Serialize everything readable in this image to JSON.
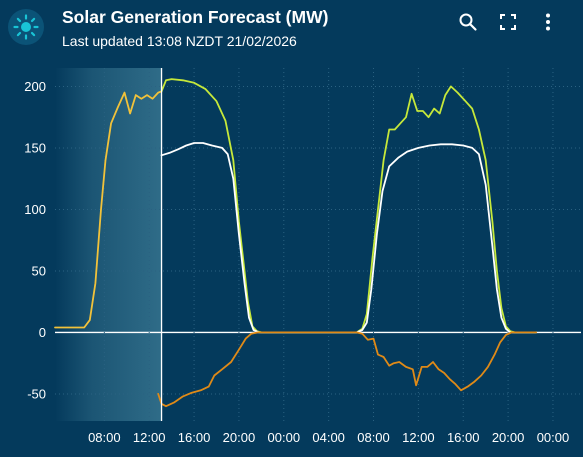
{
  "header": {
    "title": "Solar Generation Forecast (MW)",
    "subtitle": "Last updated 13:08 NZDT 21/02/2026",
    "icons": [
      "sun-icon",
      "zoom-icon",
      "fullscreen-icon",
      "more-vert-icon"
    ]
  },
  "colors": {
    "background": "#043a5c",
    "grid": "#2b6282",
    "zero_line": "#ffffff",
    "past_shade": "#2f6c88",
    "now_line": "#ffffff",
    "badge_icon": "#19c4d6",
    "series_yellow": "#f2c23a",
    "series_lime": "#c6e83a",
    "series_white": "#ffffff",
    "series_orange": "#e08a17"
  },
  "chart_data": {
    "type": "line",
    "x_unit": "hours from 04:00 on day 1",
    "x_tick_labels": [
      "08:00",
      "12:00",
      "16:00",
      "20:00",
      "00:00",
      "04:00",
      "08:00",
      "12:00",
      "16:00",
      "20:00",
      "00:00"
    ],
    "x_tick_positions": [
      4,
      8,
      12,
      16,
      20,
      24,
      28,
      32,
      36,
      40,
      44
    ],
    "xlim": [
      -0.4,
      46.5
    ],
    "ylim": [
      -72,
      215
    ],
    "y_ticks": [
      -50,
      0,
      50,
      100,
      150,
      200
    ],
    "grid": true,
    "now_marker": 9.1,
    "past_range": [
      -0.4,
      9.1
    ],
    "series": [
      {
        "color_key": "series_yellow",
        "points": [
          [
            -0.4,
            4
          ],
          [
            1.2,
            4
          ],
          [
            2.2,
            4
          ],
          [
            2.7,
            10
          ],
          [
            3.2,
            40
          ],
          [
            3.7,
            100
          ],
          [
            4.1,
            140
          ],
          [
            4.6,
            170
          ],
          [
            5.2,
            183
          ],
          [
            5.8,
            195
          ],
          [
            6.3,
            178
          ],
          [
            6.8,
            193
          ],
          [
            7.3,
            190
          ],
          [
            7.8,
            193
          ],
          [
            8.3,
            190
          ],
          [
            8.8,
            195
          ],
          [
            9.1,
            196
          ]
        ]
      },
      {
        "color_key": "series_lime",
        "points": [
          [
            9.1,
            196
          ],
          [
            9.5,
            205
          ],
          [
            10,
            206
          ],
          [
            11,
            205
          ],
          [
            12,
            203
          ],
          [
            13,
            198
          ],
          [
            14,
            188
          ],
          [
            14.8,
            172
          ],
          [
            15.5,
            140
          ],
          [
            16,
            90
          ],
          [
            16.5,
            50
          ],
          [
            16.8,
            25
          ],
          [
            17.2,
            5
          ],
          [
            17.6,
            1
          ],
          [
            18,
            0
          ],
          [
            26.5,
            0
          ],
          [
            27,
            3
          ],
          [
            27.4,
            15
          ],
          [
            27.9,
            60
          ],
          [
            28.4,
            100
          ],
          [
            28.9,
            140
          ],
          [
            29.4,
            165
          ],
          [
            29.9,
            165
          ],
          [
            30.4,
            170
          ],
          [
            30.9,
            175
          ],
          [
            31.4,
            194
          ],
          [
            31.9,
            180
          ],
          [
            32.4,
            180
          ],
          [
            32.9,
            175
          ],
          [
            33.4,
            182
          ],
          [
            33.9,
            178
          ],
          [
            34.4,
            193
          ],
          [
            34.9,
            200
          ],
          [
            35.5,
            195
          ],
          [
            36.2,
            188
          ],
          [
            36.8,
            182
          ],
          [
            37.4,
            165
          ],
          [
            38,
            140
          ],
          [
            38.6,
            90
          ],
          [
            39,
            50
          ],
          [
            39.4,
            20
          ],
          [
            39.8,
            5
          ],
          [
            40.2,
            1
          ],
          [
            40.6,
            0
          ],
          [
            42.5,
            0
          ]
        ]
      },
      {
        "color_key": "series_white",
        "points": [
          [
            9.1,
            144
          ],
          [
            9.8,
            146
          ],
          [
            10.6,
            149
          ],
          [
            11.3,
            152
          ],
          [
            12,
            154
          ],
          [
            12.8,
            154
          ],
          [
            13.6,
            152
          ],
          [
            14.5,
            150
          ],
          [
            15,
            145
          ],
          [
            15.5,
            125
          ],
          [
            16,
            80
          ],
          [
            16.5,
            40
          ],
          [
            16.9,
            12
          ],
          [
            17.3,
            2
          ],
          [
            17.8,
            0
          ],
          [
            26.5,
            0
          ],
          [
            27,
            2
          ],
          [
            27.4,
            8
          ],
          [
            27.8,
            35
          ],
          [
            28.3,
            80
          ],
          [
            28.8,
            115
          ],
          [
            29.4,
            135
          ],
          [
            30.2,
            142
          ],
          [
            31,
            147
          ],
          [
            32,
            150
          ],
          [
            33,
            152
          ],
          [
            34,
            153
          ],
          [
            35,
            153
          ],
          [
            36,
            152
          ],
          [
            36.8,
            150
          ],
          [
            37.4,
            145
          ],
          [
            38,
            120
          ],
          [
            38.6,
            70
          ],
          [
            39,
            35
          ],
          [
            39.4,
            12
          ],
          [
            39.8,
            3
          ],
          [
            40.2,
            0
          ],
          [
            42.5,
            0
          ]
        ]
      },
      {
        "color_key": "series_orange",
        "points": [
          [
            8.8,
            -50
          ],
          [
            9.1,
            -58
          ],
          [
            9.5,
            -60
          ],
          [
            10.2,
            -57
          ],
          [
            11,
            -52
          ],
          [
            11.8,
            -49
          ],
          [
            12.6,
            -47
          ],
          [
            13.3,
            -44
          ],
          [
            13.8,
            -35
          ],
          [
            14.5,
            -30
          ],
          [
            15.3,
            -24
          ],
          [
            16,
            -14
          ],
          [
            16.6,
            -5
          ],
          [
            17.1,
            -1
          ],
          [
            17.7,
            0
          ],
          [
            26.5,
            0
          ],
          [
            27,
            -1
          ],
          [
            27.5,
            -6
          ],
          [
            28,
            -5
          ],
          [
            28.4,
            -18
          ],
          [
            28.9,
            -20
          ],
          [
            29.4,
            -27
          ],
          [
            29.8,
            -25
          ],
          [
            30.3,
            -24
          ],
          [
            30.9,
            -28
          ],
          [
            31.5,
            -30
          ],
          [
            31.8,
            -43
          ],
          [
            32.3,
            -28
          ],
          [
            32.8,
            -28
          ],
          [
            33.3,
            -24
          ],
          [
            33.8,
            -30
          ],
          [
            34.3,
            -33
          ],
          [
            34.8,
            -38
          ],
          [
            35.3,
            -42
          ],
          [
            35.8,
            -47
          ],
          [
            36.4,
            -44
          ],
          [
            37,
            -40
          ],
          [
            37.6,
            -35
          ],
          [
            38.2,
            -28
          ],
          [
            38.8,
            -18
          ],
          [
            39.3,
            -8
          ],
          [
            39.8,
            -2
          ],
          [
            40.3,
            0
          ],
          [
            42.5,
            0
          ]
        ]
      }
    ]
  }
}
